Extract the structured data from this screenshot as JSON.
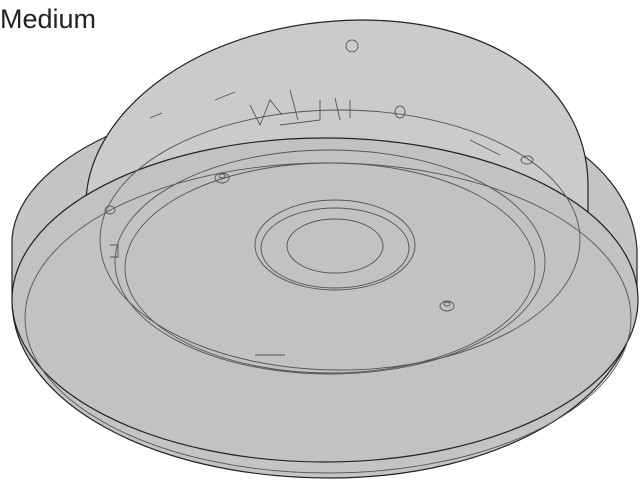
{
  "label": "Medium"
}
